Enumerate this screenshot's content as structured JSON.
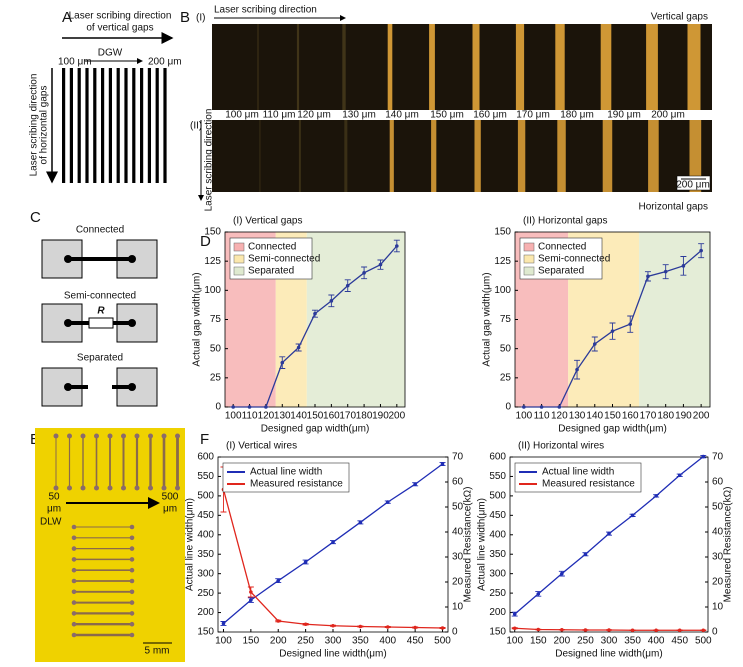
{
  "panels": {
    "A": {
      "letter": "A",
      "top_arrow": [
        "Laser scribing direction",
        "of vertical gaps"
      ],
      "dgw": "DGW",
      "start": "100 μm",
      "end": "200 μm",
      "side_arrow": [
        "Laser scribing direction",
        "of horizontal gaps"
      ]
    },
    "B": {
      "letter": "B",
      "part1": "(I)",
      "part2": "(II)",
      "top_arrow": "Laser scribing direction",
      "top_caption": "Vertical gaps",
      "gap_labels": [
        "100 μm",
        "110 μm",
        "120 μm",
        "130 μm",
        "140 μm",
        "150 μm",
        "160 μm",
        "170 μm",
        "180 μm",
        "190 μm",
        "200 μm"
      ],
      "side_arrow": "Laser scribing direction",
      "scale": "200 μm",
      "bottom_caption": "Horizontal gaps"
    },
    "C": {
      "letter": "C",
      "connected": "Connected",
      "semi": "Semi-connected",
      "resistor": "R",
      "separated": "Separated"
    },
    "D": {
      "letter": "D"
    },
    "E": {
      "letter": "E",
      "start": [
        "50",
        "μm"
      ],
      "end": [
        "500",
        "μm"
      ],
      "dlw": "DLW",
      "scale": "5 mm"
    },
    "F": {
      "letter": "F"
    }
  },
  "chart_data": [
    {
      "type": "line",
      "title": "(I) Vertical gaps",
      "x_label": "Designed gap width(μm)",
      "y_label": "Actual gap width(μm)",
      "x": [
        100,
        110,
        120,
        130,
        140,
        150,
        160,
        170,
        180,
        190,
        200
      ],
      "series": [
        {
          "color": "#2b3a99",
          "values": [
            0,
            0,
            0,
            38,
            51,
            80,
            91,
            104,
            115,
            122,
            138
          ],
          "errors": [
            0,
            0,
            0,
            5,
            3,
            3,
            5,
            5,
            5,
            4,
            5
          ]
        }
      ],
      "regions": [
        {
          "name": "Connected",
          "color": "#f7b1b1",
          "range": [
            95,
            126
          ]
        },
        {
          "name": "Semi-connected",
          "color": "#fbe8ad",
          "range": [
            126,
            145
          ]
        },
        {
          "name": "Separated",
          "color": "#dfead0",
          "range": [
            145,
            205
          ]
        }
      ],
      "xlim": [
        95,
        205
      ],
      "xticks": [
        100,
        110,
        120,
        130,
        140,
        150,
        160,
        170,
        180,
        190,
        200
      ],
      "ylim": [
        0,
        150
      ],
      "yticks": [
        0,
        25,
        50,
        75,
        100,
        125,
        150
      ]
    },
    {
      "type": "line",
      "title": "(II) Horizontal gaps",
      "x_label": "Designed gap width(μm)",
      "y_label": "Actual gap width(μm)",
      "x": [
        100,
        110,
        120,
        130,
        140,
        150,
        160,
        170,
        180,
        190,
        200
      ],
      "series": [
        {
          "color": "#2b3a99",
          "values": [
            0,
            0,
            0,
            32,
            54,
            65,
            71,
            112,
            116,
            121,
            134
          ],
          "errors": [
            0,
            0,
            0,
            8,
            6,
            7,
            7,
            4,
            6,
            8,
            6
          ]
        }
      ],
      "regions": [
        {
          "name": "Connected",
          "color": "#f7b1b1",
          "range": [
            95,
            125
          ]
        },
        {
          "name": "Semi-connected",
          "color": "#fbe8ad",
          "range": [
            125,
            165
          ]
        },
        {
          "name": "Separated",
          "color": "#dfead0",
          "range": [
            165,
            205
          ]
        }
      ],
      "xlim": [
        95,
        205
      ],
      "xticks": [
        100,
        110,
        120,
        130,
        140,
        150,
        160,
        170,
        180,
        190,
        200
      ],
      "ylim": [
        0,
        150
      ],
      "yticks": [
        0,
        25,
        50,
        75,
        100,
        125,
        150
      ]
    },
    {
      "type": "line",
      "title": "(I) Vertical wires",
      "x_label": "Designed line width(μm)",
      "y_label": "Actual line width(μm)",
      "y2_label": "Measured Resistance(kΩ)",
      "x": [
        100,
        150,
        200,
        250,
        300,
        350,
        400,
        450,
        500
      ],
      "series": [
        {
          "name": "Actual line width",
          "color": "#1f2db5",
          "values": [
            172,
            232,
            282,
            330,
            381,
            432,
            484,
            530,
            582
          ],
          "errors": [
            5,
            6,
            5,
            5,
            4,
            4,
            3,
            4,
            4
          ]
        },
        {
          "name": "Measured resistance",
          "color": "#e0261d",
          "axis": "y2",
          "values": [
            57,
            16,
            4.4,
            3.1,
            2.5,
            2.2,
            2,
            1.8,
            1.6
          ],
          "errors": [
            9,
            2,
            0.3,
            0.3,
            0.2,
            0.2,
            0.2,
            0.2,
            0.2
          ]
        }
      ],
      "legend": "upper left",
      "xlim": [
        90,
        510
      ],
      "xticks": [
        100,
        150,
        200,
        250,
        300,
        350,
        400,
        450,
        500
      ],
      "ylim": [
        150,
        600
      ],
      "yticks": [
        150,
        200,
        250,
        300,
        350,
        400,
        450,
        500,
        550,
        600
      ],
      "y2lim": [
        0,
        70
      ],
      "y2ticks": [
        0,
        10,
        20,
        30,
        40,
        50,
        60,
        70
      ]
    },
    {
      "type": "line",
      "title": "(II) Horizontal wires",
      "x_label": "Designed line width(μm)",
      "y_label": "Actual line width(μm)",
      "y2_label": "Measured Resistance(kΩ)",
      "x": [
        100,
        150,
        200,
        250,
        300,
        350,
        400,
        450,
        500
      ],
      "series": [
        {
          "name": "Actual line width",
          "color": "#1f2db5",
          "values": [
            196,
            248,
            300,
            350,
            403,
            450,
            500,
            553,
            601
          ],
          "errors": [
            5,
            6,
            6,
            4,
            4,
            3,
            3,
            3,
            3
          ]
        },
        {
          "name": "Measured resistance",
          "color": "#e0261d",
          "axis": "y2",
          "values": [
            1.5,
            1,
            0.9,
            0.8,
            0.8,
            0.7,
            0.7,
            0.7,
            0.7
          ],
          "errors": [
            0.2,
            0.1,
            0.1,
            0.1,
            0.1,
            0.1,
            0.1,
            0.1,
            0.1
          ]
        }
      ],
      "legend": "upper left",
      "xlim": [
        90,
        510
      ],
      "xticks": [
        100,
        150,
        200,
        250,
        300,
        350,
        400,
        450,
        500
      ],
      "ylim": [
        150,
        600
      ],
      "yticks": [
        150,
        200,
        250,
        300,
        350,
        400,
        450,
        500,
        550,
        600
      ],
      "y2lim": [
        0,
        70
      ],
      "y2ticks": [
        0,
        10,
        20,
        30,
        40,
        50,
        60,
        70
      ]
    }
  ]
}
